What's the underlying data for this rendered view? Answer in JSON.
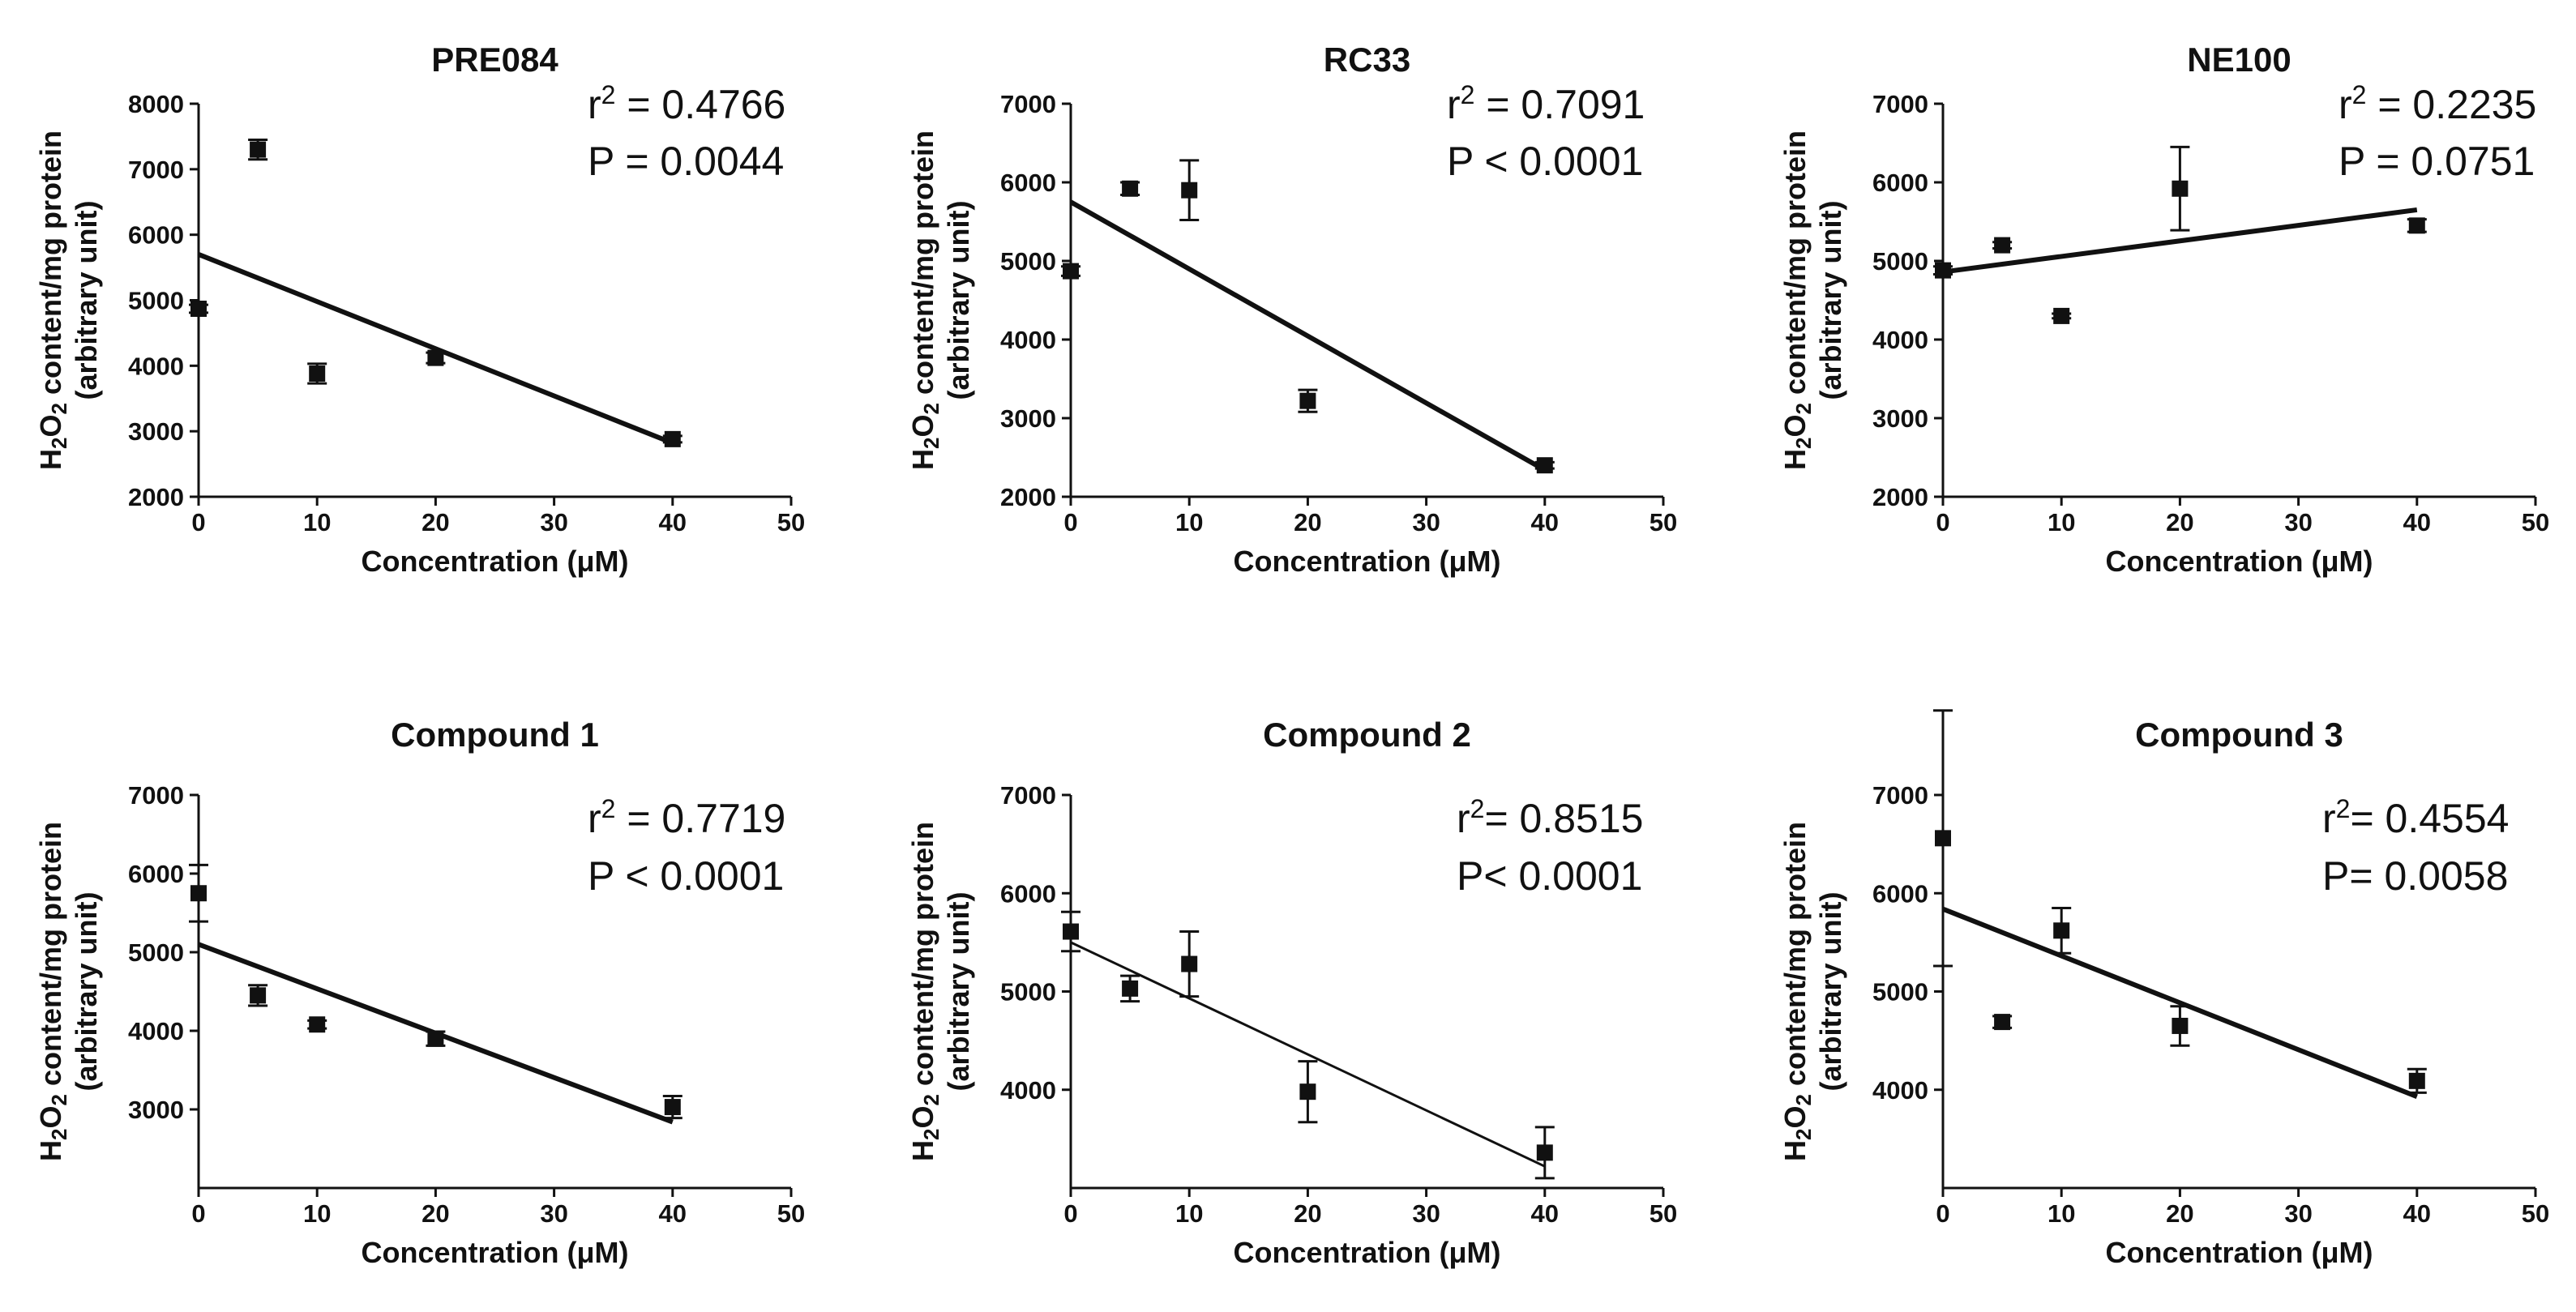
{
  "chart_data": [
    {
      "type": "scatter",
      "title": "PRE084",
      "xlabel": "Concentration (μM)",
      "ylabel_line1_prefix": "H",
      "ylabel_line1_sub1": "2",
      "ylabel_line1_mid": "O",
      "ylabel_line1_sub2": "2",
      "ylabel_line1_suffix": " content/mg protein",
      "ylabel_line2": "(arbitrary unit)",
      "xlim": [
        0,
        50
      ],
      "ylim": [
        2000,
        8000
      ],
      "xticks": [
        0,
        10,
        20,
        30,
        40,
        50
      ],
      "yticks": [
        2000,
        3000,
        4000,
        5000,
        6000,
        7000,
        8000
      ],
      "x": [
        0,
        5,
        10,
        20,
        40
      ],
      "y": [
        4870,
        7300,
        3880,
        4120,
        2880
      ],
      "err": [
        60,
        150,
        150,
        80,
        50
      ],
      "fit": {
        "x0": 0,
        "y0": 5700,
        "x1": 40,
        "y1": 2820
      },
      "stat_r_prefix": "r",
      "stat_r_sup": "2",
      "stat_r_value": " = 0.4766",
      "stat_p": "P = 0.0044"
    },
    {
      "type": "scatter",
      "title": "RC33",
      "xlabel": "Concentration (μM)",
      "ylabel_line1_prefix": "H",
      "ylabel_line1_sub1": "2",
      "ylabel_line1_mid": "O",
      "ylabel_line1_sub2": "2",
      "ylabel_line1_suffix": " content/mg protein",
      "ylabel_line2": "(arbitrary unit)",
      "xlim": [
        0,
        50
      ],
      "ylim": [
        2000,
        7000
      ],
      "xticks": [
        0,
        10,
        20,
        30,
        40,
        50
      ],
      "yticks": [
        2000,
        3000,
        4000,
        5000,
        6000,
        7000
      ],
      "x": [
        0,
        5,
        10,
        20,
        40
      ],
      "y": [
        4870,
        5920,
        5900,
        3220,
        2400
      ],
      "err": [
        60,
        80,
        380,
        140,
        40
      ],
      "fit": {
        "x0": 0,
        "y0": 5750,
        "x1": 40,
        "y1": 2340
      },
      "stat_r_prefix": "r",
      "stat_r_sup": "2",
      "stat_r_value": " = 0.7091",
      "stat_p": "P < 0.0001"
    },
    {
      "type": "scatter",
      "title": "NE100",
      "xlabel": "Concentration (μM)",
      "ylabel_line1_prefix": "H",
      "ylabel_line1_sub1": "2",
      "ylabel_line1_mid": "O",
      "ylabel_line1_sub2": "2",
      "ylabel_line1_suffix": " content/mg protein",
      "ylabel_line2": "(arbitrary unit)",
      "xlim": [
        0,
        50
      ],
      "ylim": [
        2000,
        7000
      ],
      "xticks": [
        0,
        10,
        20,
        30,
        40,
        50
      ],
      "yticks": [
        2000,
        3000,
        4000,
        5000,
        6000,
        7000
      ],
      "x": [
        0,
        5,
        10,
        20,
        40
      ],
      "y": [
        4880,
        5200,
        4300,
        5920,
        5450
      ],
      "err": [
        50,
        40,
        30,
        530,
        80
      ],
      "fit": {
        "x0": 0,
        "y0": 4860,
        "x1": 40,
        "y1": 5650
      },
      "stat_r_prefix": "r",
      "stat_r_sup": "2",
      "stat_r_value": " = 0.2235",
      "stat_p": "P = 0.0751"
    },
    {
      "type": "scatter",
      "title": "Compound 1",
      "xlabel": "Concentration (μM)",
      "ylabel_line1_prefix": "H",
      "ylabel_line1_sub1": "2",
      "ylabel_line1_mid": "O",
      "ylabel_line1_sub2": "2",
      "ylabel_line1_suffix": " content/mg protein",
      "ylabel_line2": "(arbitrary unit)",
      "xlim": [
        0,
        50
      ],
      "ylim": [
        2000,
        7000
      ],
      "xticks": [
        0,
        10,
        20,
        30,
        40,
        50
      ],
      "yticks": [
        3000,
        4000,
        5000,
        6000,
        7000
      ],
      "x": [
        0,
        5,
        10,
        20,
        40
      ],
      "y": [
        5750,
        4450,
        4080,
        3900,
        3030
      ],
      "err": [
        360,
        130,
        50,
        90,
        140
      ],
      "fit": {
        "x0": 0,
        "y0": 5100,
        "x1": 40,
        "y1": 2840
      },
      "stat_r_prefix": "r",
      "stat_r_sup": "2",
      "stat_r_value": " = 0.7719",
      "stat_p": "P < 0.0001"
    },
    {
      "type": "scatter",
      "title": "Compound 2",
      "xlabel": "Concentration (μM)",
      "ylabel_line1_prefix": "H",
      "ylabel_line1_sub1": "2",
      "ylabel_line1_mid": "O",
      "ylabel_line1_sub2": "2",
      "ylabel_line1_suffix": " content/mg protein",
      "ylabel_line2": "(arbitrary unit)",
      "xlim": [
        0,
        50
      ],
      "ylim": [
        3000,
        7000
      ],
      "xticks": [
        0,
        10,
        20,
        30,
        40,
        50
      ],
      "yticks": [
        4000,
        5000,
        6000,
        7000
      ],
      "x": [
        0,
        5,
        10,
        20,
        40
      ],
      "y": [
        5610,
        5030,
        5280,
        3980,
        3360
      ],
      "err": [
        200,
        130,
        330,
        310,
        260
      ],
      "fit": {
        "x0": 0,
        "y0": 5500,
        "x1": 40,
        "y1": 3220
      },
      "stat_r_prefix": "r",
      "stat_r_sup": "2",
      "stat_r_value": "= 0.8515",
      "stat_p": "P< 0.0001"
    },
    {
      "type": "scatter",
      "title": "Compound 3",
      "xlabel": "Concentration (μM)",
      "ylabel_line1_prefix": "H",
      "ylabel_line1_sub1": "2",
      "ylabel_line1_mid": "O",
      "ylabel_line1_sub2": "2",
      "ylabel_line1_suffix": " content/mg protein",
      "ylabel_line2": "(arbitrary unit)",
      "xlim": [
        0,
        50
      ],
      "ylim": [
        3000,
        7000
      ],
      "xticks": [
        0,
        10,
        20,
        30,
        40,
        50
      ],
      "yticks": [
        4000,
        5000,
        6000,
        7000
      ],
      "x": [
        0,
        5,
        10,
        20,
        40
      ],
      "y": [
        6560,
        4690,
        5620,
        4650,
        4090
      ],
      "err": [
        1300,
        60,
        230,
        200,
        120
      ],
      "fit": {
        "x0": 0,
        "y0": 5840,
        "x1": 40,
        "y1": 3930
      },
      "stat_r_prefix": "r",
      "stat_r_sup": "2",
      "stat_r_value": "=  0.4554",
      "stat_p": "P= 0.0058"
    }
  ]
}
